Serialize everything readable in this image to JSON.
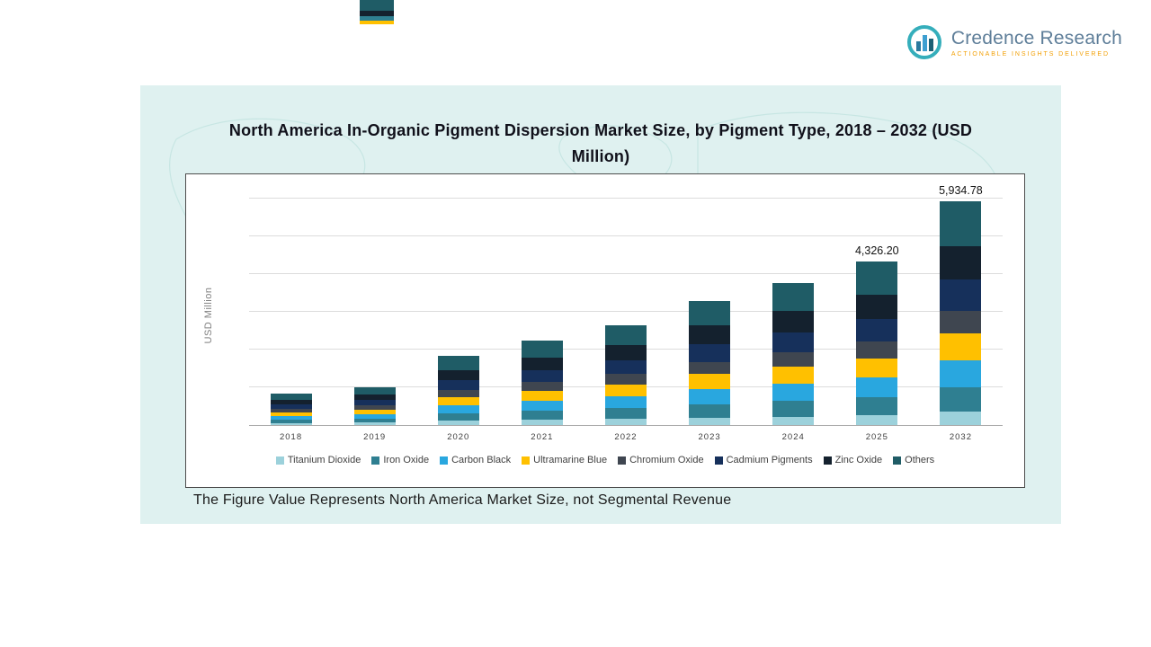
{
  "logo": {
    "name": "Credence Research",
    "tagline": "ACTIONABLE INSIGHTS DELIVERED"
  },
  "title_lines": [
    "North America In-Organic Pigment Dispersion Market Size, by Pigment Type, 2018 – 2032 (USD",
    "Million)"
  ],
  "footnote": "The Figure Value Represents North America Market Size, not Segmental Revenue",
  "colors": {
    "panel_background": "#DFF1F0",
    "chart_border": "#4D4D4D",
    "gridline": "#DCDCDC",
    "title_text": "#10101A",
    "axis_text": "#404040",
    "logo_text": "#5E7E99",
    "logo_accent": "#F2A007",
    "logo_ring": "#35AEBB"
  },
  "cropped_bar_segments": [
    {
      "color": "#1F5C66",
      "height": 12
    },
    {
      "color": "#14212E",
      "height": 6
    },
    {
      "color": "#2F7F91",
      "height": 5
    },
    {
      "color": "#FFC000",
      "height": 4
    }
  ],
  "chart_data": {
    "type": "bar",
    "stacked": true,
    "title": "North America In-Organic Pigment Dispersion Market Size, by Pigment Type, 2018 – 2032 (USD Million)",
    "xlabel": "",
    "ylabel": "USD Million",
    "ylim": [
      0,
      6500
    ],
    "ytick_step": 1000,
    "grid": true,
    "legend_position": "bottom",
    "categories": [
      "2018",
      "2019",
      "2020",
      "2021",
      "2022",
      "2023",
      "2024",
      "2025",
      "2032"
    ],
    "totals": [
      840,
      1010,
      1831,
      2240,
      2645,
      3291,
      3776,
      4326.2,
      5934.78
    ],
    "totals_note": "Only the 2025 and 2032 totals are labeled on the chart; other year totals estimated from bar heights",
    "data_labels": {
      "2025": "4,326.20",
      "2032": "5,934.78"
    },
    "series": [
      {
        "name": "Titanium Dioxide",
        "color": "#9CD1DB",
        "values": [
          50,
          61,
          110,
          134,
          159,
          197,
          227,
          260,
          356
        ]
      },
      {
        "name": "Iron Oxide",
        "color": "#2F7F91",
        "values": [
          92,
          111,
          201,
          246,
          291,
          362,
          415,
          476,
          653
        ]
      },
      {
        "name": "Carbon Black",
        "color": "#29A7DF",
        "values": [
          101,
          121,
          220,
          269,
          317,
          395,
          453,
          519,
          712
        ]
      },
      {
        "name": "Ultramarine Blue",
        "color": "#FFC000",
        "values": [
          101,
          121,
          220,
          269,
          317,
          395,
          453,
          519,
          712
        ]
      },
      {
        "name": "Chromium Oxide",
        "color": "#3F4650",
        "values": [
          84,
          101,
          183,
          224,
          265,
          329,
          378,
          433,
          593
        ]
      },
      {
        "name": "Cadmium Pigments",
        "color": "#16305B",
        "values": [
          118,
          141,
          256,
          314,
          370,
          461,
          529,
          606,
          831
        ]
      },
      {
        "name": "Zinc Oxide",
        "color": "#14212E",
        "values": [
          126,
          152,
          275,
          336,
          397,
          494,
          566,
          649,
          890
        ]
      },
      {
        "name": "Others",
        "color": "#1F5C66",
        "values": [
          168,
          202,
          366,
          448,
          529,
          658,
          755,
          865,
          1187
        ]
      }
    ]
  }
}
